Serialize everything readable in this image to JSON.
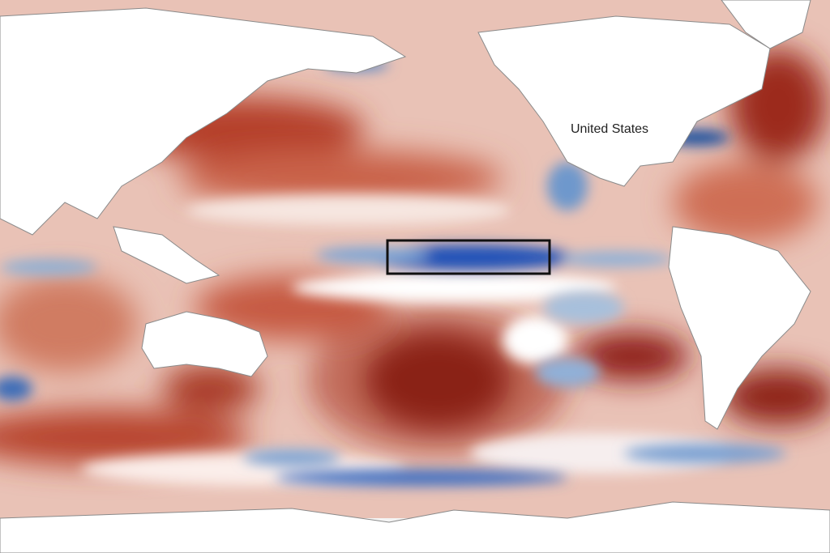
{
  "map": {
    "labels": [
      {
        "text": "United States"
      }
    ]
  }
}
